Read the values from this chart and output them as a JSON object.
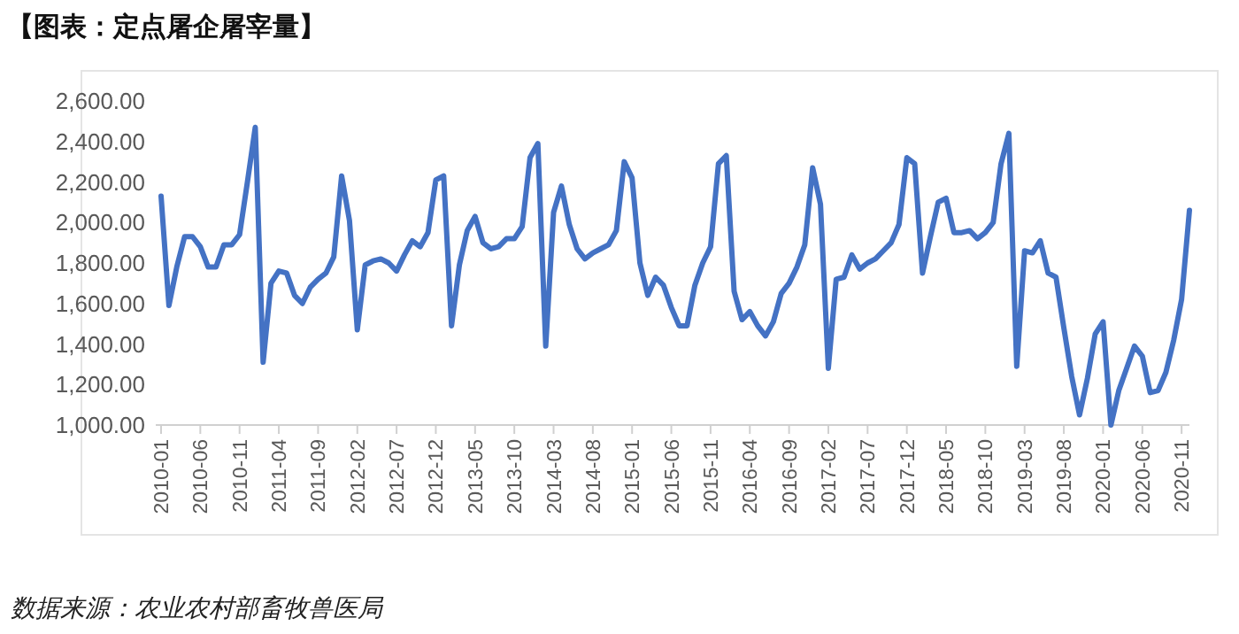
{
  "chart_data": {
    "type": "line",
    "title": "【图表：定点屠企屠宰量】",
    "annotations": [
      "数据来源：农业农村部畜牧兽医局"
    ],
    "categories": [
      "2010-01",
      null,
      null,
      null,
      null,
      "2010-06",
      null,
      null,
      null,
      null,
      "2010-11",
      null,
      null,
      null,
      null,
      "2011-04",
      null,
      null,
      null,
      null,
      "2011-09",
      null,
      null,
      null,
      null,
      "2012-02",
      null,
      null,
      null,
      null,
      "2012-07",
      null,
      null,
      null,
      null,
      "2012-12",
      null,
      null,
      null,
      null,
      "2013-05",
      null,
      null,
      null,
      null,
      "2013-10",
      null,
      null,
      null,
      null,
      "2014-03",
      null,
      null,
      null,
      null,
      "2014-08",
      null,
      null,
      null,
      null,
      "2015-01",
      null,
      null,
      null,
      null,
      "2015-06",
      null,
      null,
      null,
      null,
      "2015-11",
      null,
      null,
      null,
      null,
      "2016-04",
      null,
      null,
      null,
      null,
      "2016-09",
      null,
      null,
      null,
      null,
      "2017-02",
      null,
      null,
      null,
      null,
      "2017-07",
      null,
      null,
      null,
      null,
      "2017-12",
      null,
      null,
      null,
      null,
      "2018-05",
      null,
      null,
      null,
      null,
      "2018-10",
      null,
      null,
      null,
      null,
      "2019-03",
      null,
      null,
      null,
      null,
      "2019-08",
      null,
      null,
      null,
      null,
      "2020-01",
      null,
      null,
      null,
      null,
      "2020-06",
      null,
      null,
      null,
      null,
      "2020-11",
      null
    ],
    "series": [
      {
        "color": "#4472c4",
        "values": [
          2130,
          1590,
          1780,
          1930,
          1930,
          1880,
          1780,
          1780,
          1890,
          1890,
          1940,
          2200,
          2470,
          1310,
          1700,
          1760,
          1750,
          1640,
          1600,
          1680,
          1720,
          1750,
          1830,
          2230,
          2010,
          1470,
          1790,
          1810,
          1820,
          1800,
          1760,
          1840,
          1910,
          1880,
          1950,
          2210,
          2230,
          1490,
          1790,
          1960,
          2030,
          1900,
          1870,
          1880,
          1920,
          1920,
          1980,
          2320,
          2390,
          1390,
          2050,
          2180,
          1990,
          1870,
          1820,
          1850,
          1870,
          1890,
          1960,
          2300,
          2220,
          1800,
          1640,
          1730,
          1690,
          1580,
          1490,
          1490,
          1690,
          1800,
          1880,
          2290,
          2330,
          1660,
          1520,
          1560,
          1490,
          1440,
          1510,
          1650,
          1700,
          1780,
          1890,
          2270,
          2090,
          1280,
          1720,
          1730,
          1840,
          1770,
          1800,
          1820,
          1860,
          1900,
          1990,
          2320,
          2290,
          1750,
          1930,
          2100,
          2120,
          1950,
          1950,
          1960,
          1920,
          1950,
          2000,
          2290,
          2440,
          1290,
          1860,
          1850,
          1910,
          1750,
          1730,
          1480,
          1240,
          1050,
          1230,
          1450,
          1510,
          1000,
          1170,
          1280,
          1390,
          1340,
          1160,
          1170,
          1260,
          1420,
          1620,
          2060
        ]
      }
    ],
    "ylim": [
      1000,
      2600
    ],
    "yticks": [
      {
        "value": 1000,
        "label": "1,000.00"
      },
      {
        "value": 1200,
        "label": "1,200.00"
      },
      {
        "value": 1400,
        "label": "1,400.00"
      },
      {
        "value": 1600,
        "label": "1,600.00"
      },
      {
        "value": 1800,
        "label": "1,800.00"
      },
      {
        "value": 2000,
        "label": "2,000.00"
      },
      {
        "value": 2200,
        "label": "2,200.00"
      },
      {
        "value": 2400,
        "label": "2,400.00"
      },
      {
        "value": 2600,
        "label": "2,600.00"
      }
    ],
    "grid": false,
    "marker": "none",
    "line_style": "solid"
  }
}
